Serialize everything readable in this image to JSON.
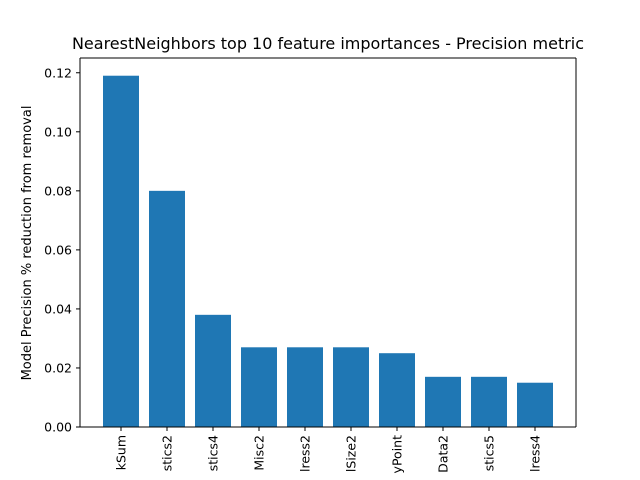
{
  "chart_data": {
    "type": "bar",
    "title": "NearestNeighbors top 10 feature importances - Precision metric",
    "xlabel": "",
    "ylabel": "Model Precision % reduction from removal",
    "categories": [
      "kSum",
      "stics2",
      "stics4",
      "Misc2",
      "lress2",
      "lSize2",
      "yPoint",
      "Data2",
      "stics5",
      "lress4"
    ],
    "values": [
      0.119,
      0.08,
      0.038,
      0.027,
      0.027,
      0.027,
      0.025,
      0.017,
      0.017,
      0.015
    ],
    "ylim": [
      0,
      0.125
    ],
    "yticks": [
      0.0,
      0.02,
      0.04,
      0.06,
      0.08,
      0.1,
      0.12
    ],
    "ytick_labels": [
      "0.00",
      "0.02",
      "0.04",
      "0.06",
      "0.08",
      "0.10",
      "0.12"
    ],
    "bar_color": "#1f77b4",
    "grid": false,
    "legend": "none"
  }
}
